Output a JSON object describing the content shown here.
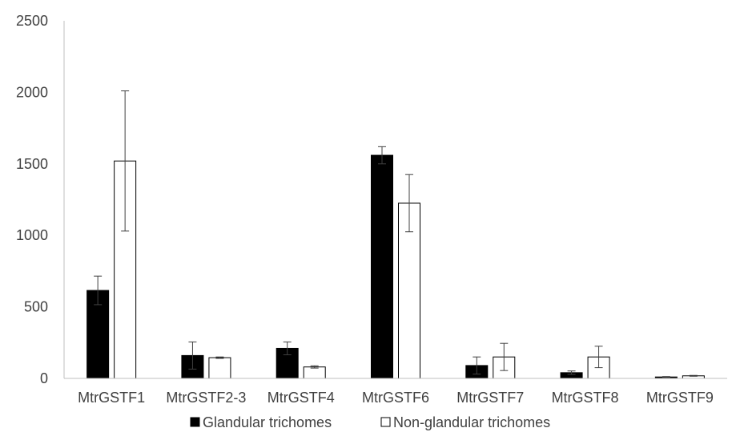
{
  "chart_data": {
    "type": "bar",
    "title": "",
    "xlabel": "",
    "ylabel": "",
    "ylim": [
      0,
      2500
    ],
    "yticks": [
      0,
      500,
      1000,
      1500,
      2000,
      2500
    ],
    "grid": false,
    "legend_position": "bottom",
    "categories": [
      "MtrGSTF1",
      "MtrGSTF2-3",
      "MtrGSTF4",
      "MtrGSTF6",
      "MtrGSTF7",
      "MtrGSTF8",
      "MtrGSTF9"
    ],
    "series": [
      {
        "name": "Glandular trichomes",
        "color": "#000000",
        "fill": "#000000",
        "values": [
          615,
          160,
          210,
          1560,
          90,
          40,
          10
        ],
        "errors": [
          100,
          95,
          45,
          60,
          60,
          12,
          3
        ]
      },
      {
        "name": "Non-glandular trichomes",
        "color": "#000000",
        "fill": "#ffffff",
        "values": [
          1520,
          145,
          80,
          1225,
          150,
          150,
          18
        ],
        "errors": [
          490,
          5,
          8,
          200,
          95,
          75,
          3
        ]
      }
    ]
  }
}
